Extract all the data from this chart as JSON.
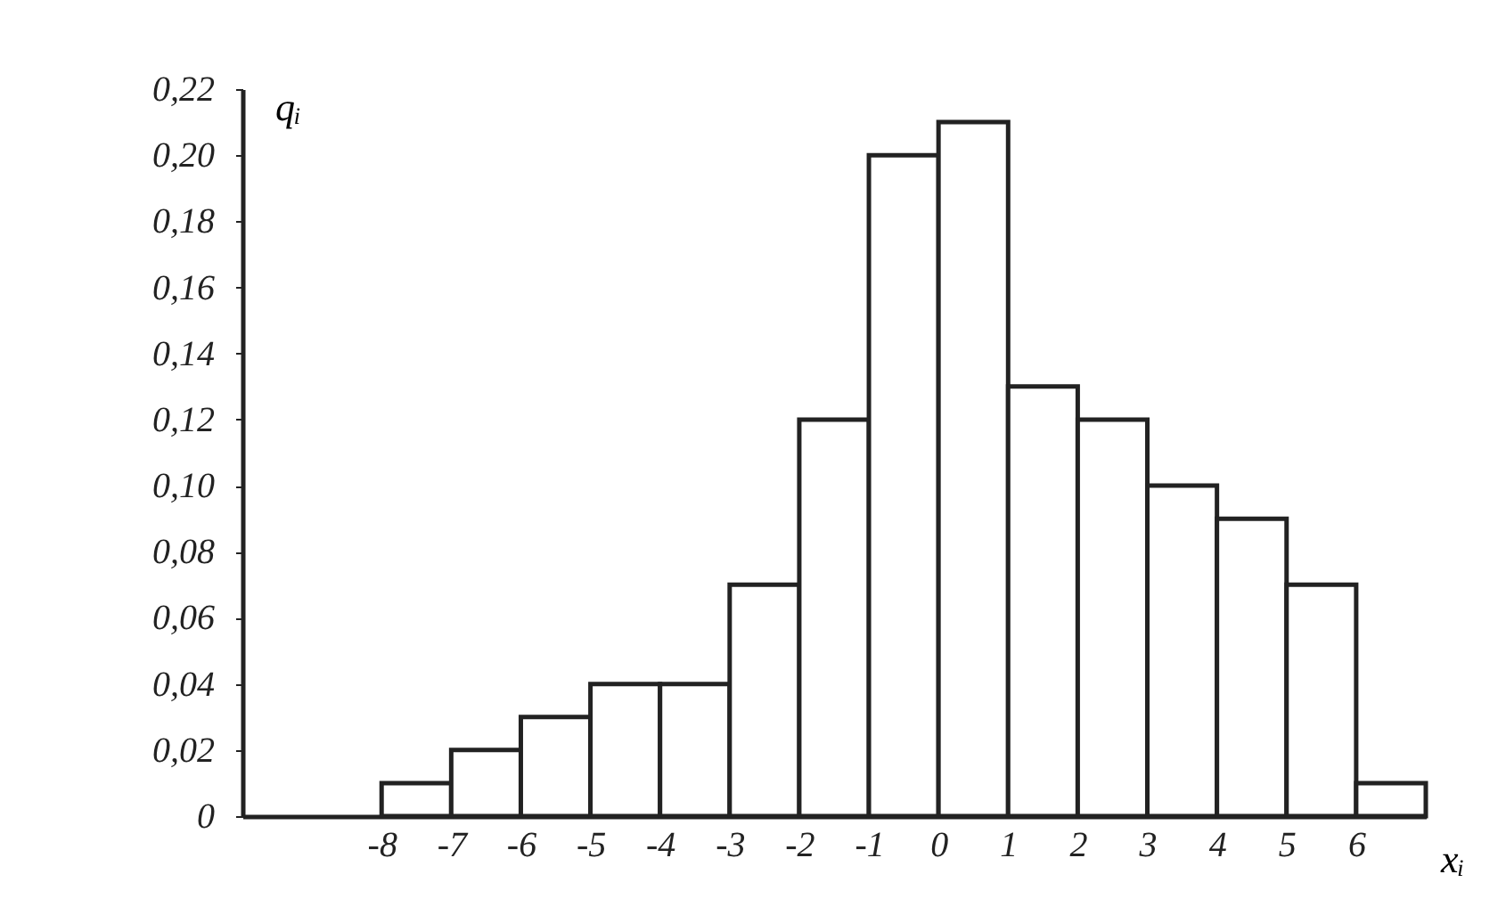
{
  "chart_data": {
    "type": "histogram",
    "xlabel": "xᵢ",
    "ylabel": "qᵢ",
    "bins": [
      -8,
      -7,
      -6,
      -5,
      -4,
      -3,
      -2,
      -1,
      0,
      1,
      2,
      3,
      4,
      5,
      6,
      7
    ],
    "values": [
      0.01,
      0.02,
      0.03,
      0.04,
      0.04,
      0.07,
      0.12,
      0.2,
      0.21,
      0.13,
      0.12,
      0.1,
      0.09,
      0.07,
      0.01
    ],
    "color": "#ffffff",
    "xlim": [
      -10,
      7
    ],
    "xticks": [
      -8,
      -7,
      -6,
      -5,
      -4,
      -3,
      -2,
      -1,
      0,
      1,
      2,
      3,
      4,
      5,
      6
    ],
    "ylim": [
      0,
      0.22
    ],
    "yticks": [
      {
        "value": 0,
        "label": "0"
      },
      {
        "value": 0.02,
        "label": "0,02"
      },
      {
        "value": 0.04,
        "label": "0,04"
      },
      {
        "value": 0.06,
        "label": "0,06"
      },
      {
        "value": 0.08,
        "label": "0,08"
      },
      {
        "value": 0.1,
        "label": "0,10"
      },
      {
        "value": 0.12,
        "label": "0,12"
      },
      {
        "value": 0.14,
        "label": "0,14"
      },
      {
        "value": 0.16,
        "label": "0,16"
      },
      {
        "value": 0.18,
        "label": "0,18"
      },
      {
        "value": 0.2,
        "label": "0,20"
      },
      {
        "value": 0.22,
        "label": "0,22"
      }
    ],
    "grid": false
  }
}
